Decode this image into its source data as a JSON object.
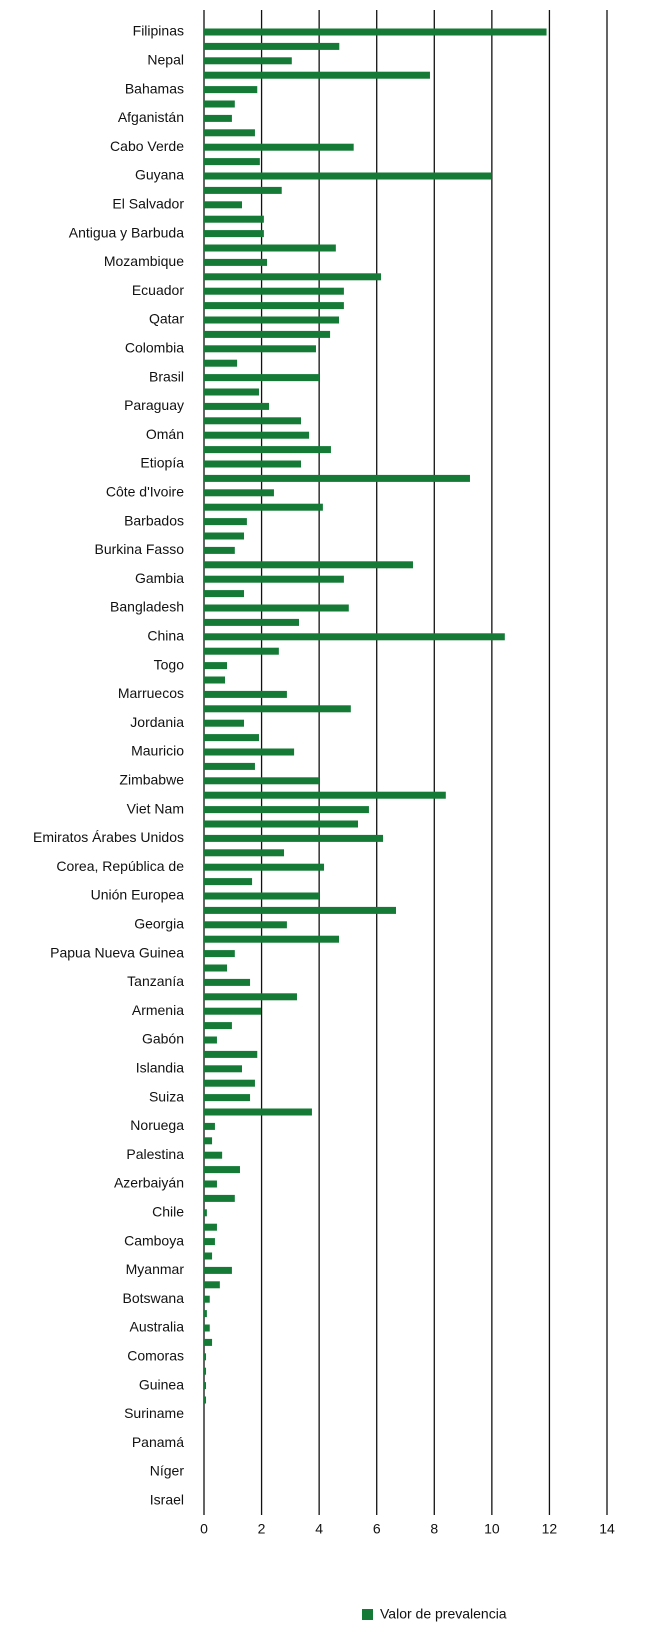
{
  "chart_data": {
    "type": "bar",
    "orientation": "horizontal",
    "categories": [
      "Filipinas",
      null,
      "Nepal",
      null,
      "Bahamas",
      null,
      "Afganistán",
      null,
      "Cabo Verde",
      null,
      "Guyana",
      null,
      "El Salvador",
      null,
      "Antigua y Barbuda",
      null,
      "Mozambique",
      null,
      "Ecuador",
      null,
      "Qatar",
      null,
      "Colombia",
      null,
      "Brasil",
      null,
      "Paraguay",
      null,
      "Omán",
      null,
      "Etiopía",
      null,
      "Côte d'Ivoire",
      null,
      "Barbados",
      null,
      "Burkina Fasso",
      null,
      "Gambia",
      null,
      "Bangladesh",
      null,
      "China",
      null,
      "Togo",
      null,
      "Marruecos",
      null,
      "Jordania",
      null,
      "Mauricio",
      null,
      "Zimbabwe",
      null,
      "Viet Nam",
      null,
      "Emiratos Árabes Unidos",
      null,
      "Corea, República de",
      null,
      "Unión Europea",
      null,
      "Georgia",
      null,
      "Papua Nueva Guinea",
      null,
      "Tanzanía",
      null,
      "Armenia",
      null,
      "Gabón",
      null,
      "Islandia",
      null,
      "Suiza",
      null,
      "Noruega",
      null,
      "Palestina",
      null,
      "Azerbaiyán",
      null,
      "Chile",
      null,
      "Camboya",
      null,
      "Myanmar",
      null,
      "Botswana",
      null,
      "Australia",
      null,
      "Comoras",
      null,
      "Guinea",
      null,
      "Suriname",
      null,
      "Panamá",
      null,
      "Níger",
      null,
      "Israel"
    ],
    "series": [
      {
        "name": "Valor de prevalencia",
        "color": "#147a36",
        "values": [
          11.9,
          4.7,
          3.05,
          7.85,
          1.85,
          1.07,
          0.97,
          1.77,
          5.2,
          1.94,
          10.0,
          2.7,
          1.32,
          2.08,
          2.08,
          4.58,
          2.19,
          6.15,
          4.86,
          4.86,
          4.69,
          4.38,
          3.89,
          1.15,
          4.0,
          1.91,
          2.26,
          3.37,
          3.65,
          4.41,
          3.37,
          9.24,
          2.43,
          4.13,
          1.49,
          1.39,
          1.07,
          7.26,
          4.86,
          1.39,
          5.03,
          3.3,
          10.45,
          2.6,
          0.8,
          0.73,
          2.88,
          5.1,
          1.39,
          1.91,
          3.13,
          1.77,
          4.0,
          8.4,
          5.73,
          5.35,
          6.22,
          2.78,
          4.17,
          1.67,
          4.0,
          6.67,
          2.88,
          4.69,
          1.07,
          0.8,
          1.6,
          3.23,
          1.98,
          0.97,
          0.45,
          1.85,
          1.32,
          1.77,
          1.6,
          3.75,
          0.38,
          0.28,
          0.63,
          1.25,
          0.45,
          1.07,
          0.1,
          0.45,
          0.38,
          0.28,
          0.97,
          0.55,
          0.2,
          0.1,
          0.2,
          0.28,
          0.07,
          0.07,
          0.07,
          0.07,
          0,
          0,
          0,
          0,
          0,
          0,
          0
        ]
      }
    ],
    "xlim": [
      0,
      14
    ],
    "xticks": [
      0,
      2,
      4,
      6,
      8,
      10,
      12,
      14
    ],
    "grid": true,
    "legend": "bottom"
  }
}
